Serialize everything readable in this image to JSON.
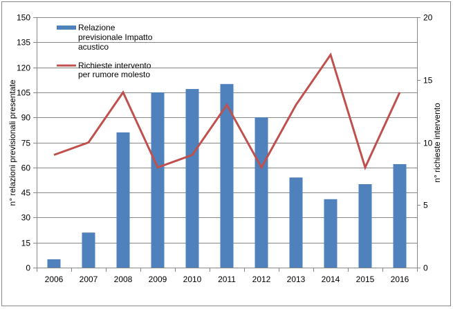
{
  "chart_data": {
    "type": "bar+line",
    "categories": [
      "2006",
      "2007",
      "2008",
      "2009",
      "2010",
      "2011",
      "2012",
      "2013",
      "2014",
      "2015",
      "2016"
    ],
    "series": [
      {
        "name": "Relazione previsionale Impatto acustico",
        "type": "bar",
        "axis": "left",
        "color": "#4F81BD",
        "values": [
          5,
          21,
          81,
          105,
          107,
          110,
          90,
          54,
          41,
          50,
          62
        ]
      },
      {
        "name": "Richieste intervento per rumore molesto",
        "type": "line",
        "axis": "right",
        "color": "#C0504D",
        "values": [
          9,
          10,
          14,
          8,
          9,
          13,
          8,
          13,
          17,
          8,
          14
        ]
      }
    ],
    "ylabel": "n° relazioni previsionali  presentate",
    "y2label": "n° richieste intervento",
    "ylim": [
      0,
      150
    ],
    "yticks": [
      0,
      15,
      30,
      45,
      60,
      75,
      90,
      105,
      120,
      135,
      150
    ],
    "y2lim": [
      0,
      20
    ],
    "y2ticks": [
      0,
      5,
      10,
      15,
      20
    ],
    "grid": true,
    "legend_position": "top-left",
    "legend": [
      {
        "lines": [
          "Relazione",
          "previsionale Impatto",
          "acustico"
        ]
      },
      {
        "lines": [
          "Richieste intervento",
          "per rumore molesto"
        ]
      }
    ]
  }
}
